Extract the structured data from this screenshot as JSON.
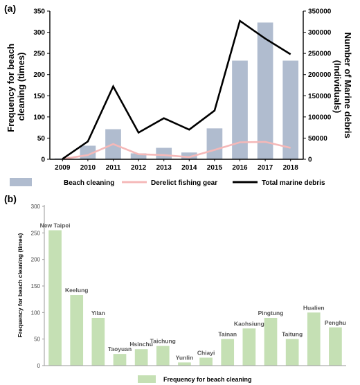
{
  "chart_data": [
    {
      "type": "bar",
      "panel_label": "(a)",
      "categories": [
        "2009",
        "2010",
        "2011",
        "2012",
        "2013",
        "2014",
        "2015",
        "2016",
        "2017",
        "2018"
      ],
      "series": [
        {
          "name": "Beach cleaning",
          "type": "bar",
          "axis": "left",
          "color": "#b0bccf",
          "values": [
            2,
            32,
            71,
            14,
            27,
            16,
            73,
            233,
            323,
            233
          ]
        },
        {
          "name": "Derelict fishing gear",
          "type": "line",
          "axis": "right",
          "color": "#f5b8b8",
          "values": [
            500,
            10000,
            36000,
            12000,
            10000,
            5000,
            22000,
            40000,
            41000,
            27000
          ]
        },
        {
          "name": "Total marine debris",
          "type": "line",
          "axis": "right",
          "color": "#000000",
          "values": [
            1000,
            42000,
            172000,
            63000,
            97000,
            70000,
            115000,
            327000,
            285000,
            248000
          ]
        }
      ],
      "ylabel_left": "Frequency for beach cleaning (times)",
      "ylabel_right": "Number of Marine debris (Individuals)",
      "ylim_left": [
        0,
        350
      ],
      "ylim_right": [
        0,
        350000
      ],
      "yticks_left": [
        "0",
        "50",
        "100",
        "150",
        "200",
        "250",
        "300",
        "350"
      ],
      "yticks_right": [
        "0",
        "50000",
        "100000",
        "150000",
        "200000",
        "250000",
        "300000",
        "350000"
      ],
      "legend_position": "bottom"
    },
    {
      "type": "bar",
      "panel_label": "(b)",
      "categories": [
        "New Taipei",
        "Keelung",
        "Yilan",
        "Taoyuan",
        "Hsinchu",
        "Taichung",
        "Yunlin",
        "Chiayi",
        "Tainan",
        "Kaohsiung",
        "Pingtung",
        "Taitung",
        "Hualien",
        "Penghu"
      ],
      "series": [
        {
          "name": "Frequency for beach cleaning",
          "color": "#c5e0b4",
          "values": [
            255,
            133,
            90,
            22,
            31,
            37,
            6,
            15,
            50,
            70,
            90,
            50,
            100,
            72
          ]
        }
      ],
      "ylabel": "Frequency for beach cleaning (times)",
      "ylim": [
        0,
        300
      ],
      "yticks": [
        "0",
        "50",
        "100",
        "150",
        "200",
        "250",
        "300"
      ],
      "legend_position": "bottom"
    }
  ]
}
